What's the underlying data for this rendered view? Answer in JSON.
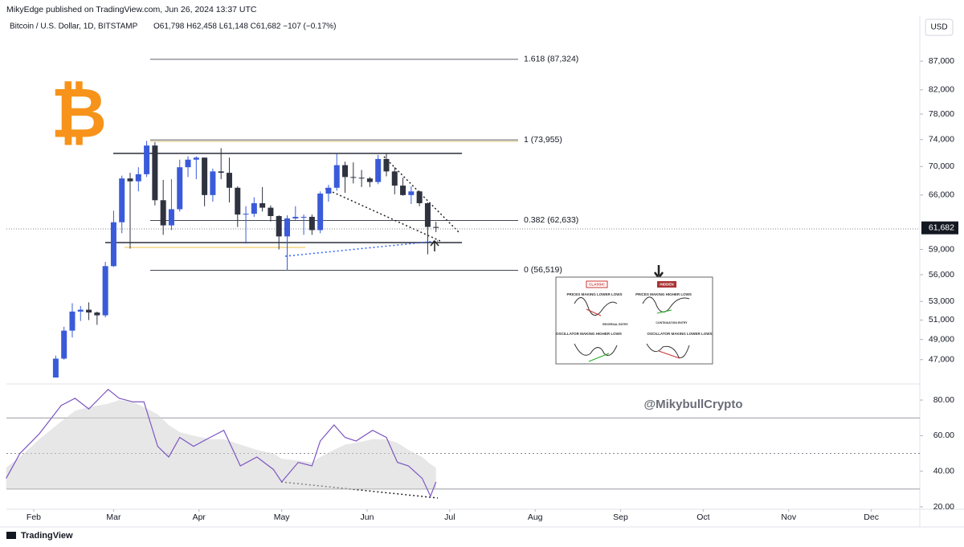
{
  "chart_data": {
    "type": "candlestick",
    "publisher": "MikyEdge published on TradingView.com, Jun 26, 2024 13:37 UTC",
    "title": "Bitcoin / U.S. Dollar, 1D, BITSTAMP",
    "legend_text": "O61,798 H62,458 L61,148 C61,682 −107 (−0.17%)",
    "currency": "USD",
    "log_scale": true,
    "grid": false,
    "up_color": "#3a5bd9",
    "down_color": "#2f3340",
    "xlim": [
      -9.9,
      321.6
    ],
    "xticks": [
      {
        "value": 0,
        "label": "Feb"
      },
      {
        "value": 29,
        "label": "Mar"
      },
      {
        "value": 60,
        "label": "Apr"
      },
      {
        "value": 90,
        "label": "May"
      },
      {
        "value": 121,
        "label": "Jun"
      },
      {
        "value": 151,
        "label": "Jul"
      },
      {
        "value": 182,
        "label": "Aug"
      },
      {
        "value": 213,
        "label": "Sep"
      },
      {
        "value": 243,
        "label": "Oct"
      },
      {
        "value": 274,
        "label": "Nov"
      },
      {
        "value": 304,
        "label": "Dec"
      }
    ],
    "ylim": [
      45300,
      91600
    ],
    "yticks": [
      {
        "value": 87000,
        "label": "87,000"
      },
      {
        "value": 82000,
        "label": "82,000"
      },
      {
        "value": 78000,
        "label": "78,000"
      },
      {
        "value": 74000,
        "label": "74,000"
      },
      {
        "value": 70000,
        "label": "70,000"
      },
      {
        "value": 66000,
        "label": "66,000"
      },
      {
        "value": 59000,
        "label": "59,000"
      },
      {
        "value": 56000,
        "label": "56,000"
      },
      {
        "value": 53000,
        "label": "53,000"
      },
      {
        "value": 51000,
        "label": "51,000"
      },
      {
        "value": 49000,
        "label": "49,000"
      },
      {
        "value": 47000,
        "label": "47,000"
      }
    ],
    "last_price": {
      "value": 61682,
      "label": "61,682"
    },
    "candles": [
      {
        "x": 8,
        "o": 45300,
        "h": 47400,
        "l": 45600,
        "c": 47100
      },
      {
        "x": 11,
        "o": 47100,
        "h": 50300,
        "l": 47000,
        "c": 49900
      },
      {
        "x": 14,
        "o": 49900,
        "h": 52800,
        "l": 49200,
        "c": 51900
      },
      {
        "x": 17,
        "o": 51900,
        "h": 52500,
        "l": 50900,
        "c": 52100
      },
      {
        "x": 20,
        "o": 52100,
        "h": 52900,
        "l": 51000,
        "c": 51800
      },
      {
        "x": 23,
        "o": 51800,
        "h": 51900,
        "l": 50500,
        "c": 51500
      },
      {
        "x": 26,
        "o": 51500,
        "h": 57500,
        "l": 51300,
        "c": 57000
      },
      {
        "x": 29,
        "o": 57000,
        "h": 63900,
        "l": 56900,
        "c": 62400
      },
      {
        "x": 32,
        "o": 62400,
        "h": 68700,
        "l": 61000,
        "c": 68300
      },
      {
        "x": 35,
        "o": 68300,
        "h": 69100,
        "l": 59100,
        "c": 67900
      },
      {
        "x": 38,
        "o": 67900,
        "h": 69900,
        "l": 66500,
        "c": 68900
      },
      {
        "x": 41,
        "o": 68900,
        "h": 73800,
        "l": 68500,
        "c": 73100
      },
      {
        "x": 44,
        "o": 73100,
        "h": 73600,
        "l": 64600,
        "c": 65300
      },
      {
        "x": 47,
        "o": 65300,
        "h": 68100,
        "l": 60800,
        "c": 62000
      },
      {
        "x": 50,
        "o": 62000,
        "h": 68200,
        "l": 61400,
        "c": 64100
      },
      {
        "x": 53,
        "o": 64100,
        "h": 71000,
        "l": 63800,
        "c": 69900
      },
      {
        "x": 56,
        "o": 69900,
        "h": 71500,
        "l": 68500,
        "c": 71000
      },
      {
        "x": 59,
        "o": 71000,
        "h": 71500,
        "l": 68200,
        "c": 71300
      },
      {
        "x": 62,
        "o": 71300,
        "h": 71300,
        "l": 64500,
        "c": 66000
      },
      {
        "x": 65,
        "o": 66000,
        "h": 69700,
        "l": 65100,
        "c": 69300
      },
      {
        "x": 68,
        "o": 69300,
        "h": 72700,
        "l": 68200,
        "c": 69100
      },
      {
        "x": 71,
        "o": 69100,
        "h": 71300,
        "l": 65000,
        "c": 67000
      },
      {
        "x": 74,
        "o": 67000,
        "h": 67200,
        "l": 61800,
        "c": 63400
      },
      {
        "x": 77,
        "o": 63400,
        "h": 64500,
        "l": 59700,
        "c": 63500
      },
      {
        "x": 80,
        "o": 63500,
        "h": 65700,
        "l": 63100,
        "c": 64900
      },
      {
        "x": 83,
        "o": 64900,
        "h": 67100,
        "l": 63800,
        "c": 64300
      },
      {
        "x": 86,
        "o": 64300,
        "h": 64600,
        "l": 62500,
        "c": 63200
      },
      {
        "x": 89,
        "o": 63200,
        "h": 63300,
        "l": 59000,
        "c": 60600
      },
      {
        "x": 92,
        "o": 60600,
        "h": 63300,
        "l": 56500,
        "c": 62900
      },
      {
        "x": 95,
        "o": 62900,
        "h": 64500,
        "l": 62700,
        "c": 63100
      },
      {
        "x": 98,
        "o": 63100,
        "h": 63400,
        "l": 60800,
        "c": 63100
      },
      {
        "x": 101,
        "o": 63100,
        "h": 63400,
        "l": 60800,
        "c": 61400
      },
      {
        "x": 104,
        "o": 61400,
        "h": 66500,
        "l": 61000,
        "c": 66200
      },
      {
        "x": 107,
        "o": 66200,
        "h": 67400,
        "l": 65100,
        "c": 67000
      },
      {
        "x": 110,
        "o": 67000,
        "h": 71900,
        "l": 66600,
        "c": 70200
      },
      {
        "x": 113,
        "o": 70200,
        "h": 70700,
        "l": 66300,
        "c": 68500
      },
      {
        "x": 116,
        "o": 68500,
        "h": 70600,
        "l": 67600,
        "c": 68400
      },
      {
        "x": 119,
        "o": 68400,
        "h": 69500,
        "l": 67100,
        "c": 68300
      },
      {
        "x": 122,
        "o": 68300,
        "h": 68500,
        "l": 67100,
        "c": 67800
      },
      {
        "x": 125,
        "o": 67800,
        "h": 71700,
        "l": 67500,
        "c": 71100
      },
      {
        "x": 128,
        "o": 71100,
        "h": 71900,
        "l": 68600,
        "c": 69300
      },
      {
        "x": 131,
        "o": 69300,
        "h": 69900,
        "l": 66100,
        "c": 67300
      },
      {
        "x": 134,
        "o": 67300,
        "h": 68400,
        "l": 65900,
        "c": 66000
      },
      {
        "x": 137,
        "o": 66000,
        "h": 67200,
        "l": 64800,
        "c": 66500
      },
      {
        "x": 140,
        "o": 66500,
        "h": 66600,
        "l": 64500,
        "c": 64900
      },
      {
        "x": 143,
        "o": 64900,
        "h": 65000,
        "l": 58400,
        "c": 61800
      },
      {
        "x": 146,
        "o": 61798,
        "h": 62458,
        "l": 61148,
        "c": 61682
      }
    ],
    "fib_levels": [
      {
        "label": "1.618 (87,324)",
        "price": 87324
      },
      {
        "label": "1 (73,955)",
        "price": 73955
      },
      {
        "label": "0.382 (62,633)",
        "price": 62633
      },
      {
        "label": "0 (56,519)",
        "price": 56519
      }
    ],
    "rsi": {
      "color": "#7e57c2",
      "ma_color": "#d4d4d4",
      "ylim": [
        19.1,
        85.9
      ],
      "yticks": [
        {
          "value": 80,
          "label": "80.00"
        },
        {
          "value": 60,
          "label": "60.00"
        },
        {
          "value": 40,
          "label": "40.00"
        },
        {
          "value": 20,
          "label": "20.00"
        }
      ],
      "upper_band": 70,
      "middle_band": 50,
      "lower_band": 30,
      "x": [
        -10,
        -5,
        2,
        10,
        15,
        20,
        27,
        31,
        36,
        40,
        45,
        49,
        53,
        58,
        64,
        69,
        75,
        81,
        87,
        90,
        96,
        101,
        104,
        109,
        113,
        117,
        123,
        128,
        132,
        136,
        141,
        144,
        146
      ],
      "values": [
        36,
        50,
        61,
        77,
        81,
        75,
        86,
        81,
        79,
        79,
        54,
        48,
        59,
        54,
        59,
        63,
        43,
        48,
        41,
        34,
        45,
        43,
        57,
        66,
        59,
        57,
        63,
        59,
        45,
        43,
        36,
        26,
        34
      ],
      "ma_values": [
        42,
        48,
        58,
        68,
        74,
        76,
        78,
        80,
        79,
        76,
        72,
        66,
        62,
        60,
        58,
        58,
        55,
        52,
        50,
        47,
        46,
        45,
        48,
        52,
        55,
        56,
        58,
        58,
        56,
        52,
        48,
        44,
        42
      ]
    },
    "watermark": "@MikybullCrypto",
    "inset": {
      "classic": "CLASSIC",
      "hidden": "HIDDEN",
      "price_lower": "PRICES MAKING LOWER LOWS",
      "price_higher": "PRICES MAKING HIGHER LOWS",
      "reversal": "REVERSAL ENTRY",
      "continuation": "CONTINUATION ENTRY",
      "osc_higher": "OSCILLATOR MAKING HIGHER LOWS",
      "osc_lower": "OSCILLATOR MAKING LOWER LOWS"
    },
    "footer": "TradingView"
  }
}
